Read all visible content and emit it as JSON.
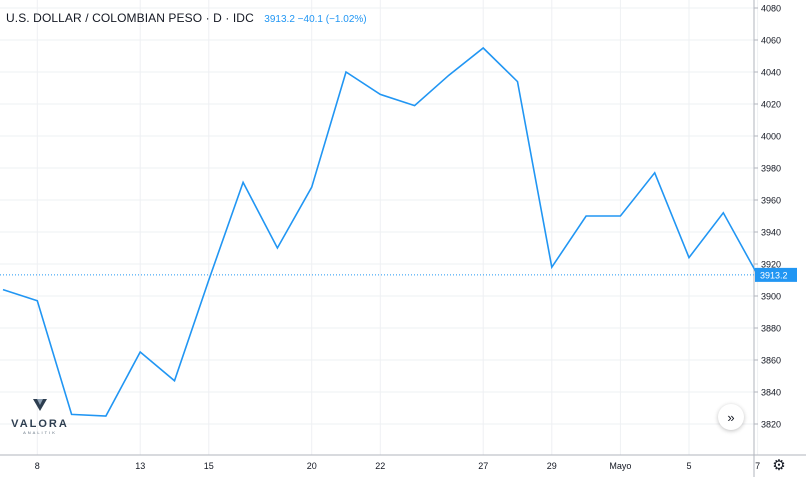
{
  "header": {
    "symbol": "U.S. DOLLAR / COLOMBIAN PESO · D · IDC",
    "last": "3913.2",
    "change": "−40.1",
    "change_pct": "(−1.02%)"
  },
  "logo": {
    "name": "VALORA",
    "sub": "ANALITIK"
  },
  "controls": {
    "scroll_icon": "chevrons-right-icon",
    "settings_icon": "gear-icon"
  },
  "colors": {
    "line": "#2196f3",
    "grid": "#eef0f3",
    "axis": "#9598a1",
    "text": "#131722",
    "price_label_bg": "#2196f3"
  },
  "chart_data": {
    "type": "line",
    "title": "U.S. DOLLAR / COLOMBIAN PESO · D · IDC",
    "xlabel": "",
    "ylabel": "",
    "ylim": [
      3810,
      4088
    ],
    "grid": true,
    "x_ticks": [
      "8",
      "13",
      "15",
      "20",
      "22",
      "27",
      "29",
      "Mayo",
      "5",
      "7"
    ],
    "y_ticks": [
      3820,
      3840,
      3860,
      3880,
      3900,
      3920,
      3940,
      3960,
      3980,
      4000,
      4020,
      4040,
      4060,
      4080
    ],
    "current_price_label": "3913.2",
    "series": [
      {
        "values": [
          3904,
          3897,
          3826,
          3825,
          3865,
          3847,
          3910,
          3971,
          3930,
          3968,
          4040,
          4026,
          4019,
          4038,
          4055,
          4034,
          3918,
          3950,
          3950,
          3977,
          3924,
          3952,
          3913.2
        ]
      }
    ]
  }
}
